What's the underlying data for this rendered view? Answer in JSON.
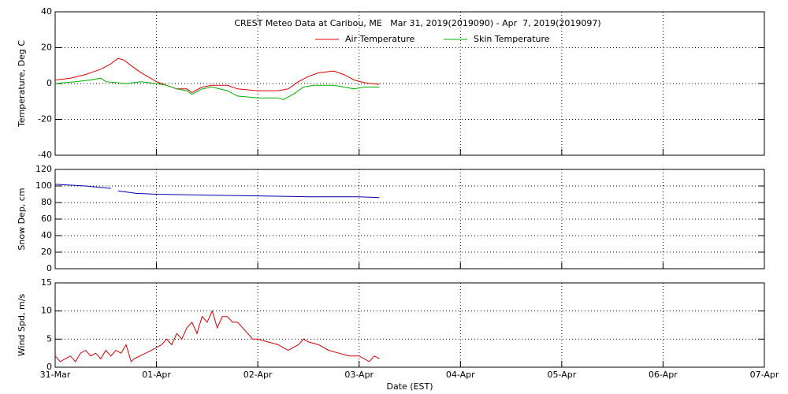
{
  "chart_data": [
    {
      "type": "line",
      "title": "CREST Meteo Data at Caribou, ME   Mar 31, 2019(2019090) - Apr  7, 2019(2019097)",
      "ylabel": "Temperature, Deg C",
      "xlim": [
        90,
        97
      ],
      "xticks": [
        90,
        91,
        92,
        93,
        94,
        95,
        96,
        97
      ],
      "ylim": [
        -40,
        40
      ],
      "yticks": [
        -40,
        -20,
        0,
        20,
        40
      ],
      "grid": true,
      "series": [
        {
          "name": "Air Temperature",
          "color": "#e00000",
          "x": [
            90.0,
            90.15,
            90.3,
            90.45,
            90.55,
            90.62,
            90.68,
            90.75,
            90.85,
            91.0,
            91.1,
            91.2,
            91.3,
            91.35,
            91.45,
            91.55,
            91.7,
            91.8,
            92.0,
            92.2,
            92.3,
            92.4,
            92.5,
            92.6,
            92.75,
            92.85,
            92.95,
            93.05,
            93.2
          ],
          "values": [
            2,
            3,
            5,
            8,
            11,
            14,
            13,
            10,
            6,
            1,
            -1,
            -3,
            -3,
            -5,
            -2,
            -1,
            -1,
            -3,
            -4,
            -4,
            -3,
            1,
            4,
            6,
            7,
            5,
            2,
            0.5,
            -0.5
          ]
        },
        {
          "name": "Skin Temperature",
          "color": "#00b000",
          "x": [
            90.0,
            90.2,
            90.35,
            90.45,
            90.5,
            90.7,
            90.85,
            91.0,
            91.1,
            91.2,
            91.3,
            91.35,
            91.45,
            91.55,
            91.7,
            91.8,
            92.0,
            92.2,
            92.25,
            92.35,
            92.45,
            92.55,
            92.75,
            92.85,
            92.95,
            93.05,
            93.2
          ],
          "values": [
            0,
            1,
            2,
            3,
            1,
            0,
            1,
            0,
            -1,
            -3,
            -4,
            -6,
            -3,
            -2,
            -4,
            -7,
            -8,
            -8,
            -9,
            -6,
            -2,
            -1,
            -1,
            -2,
            -3,
            -2,
            -2
          ]
        }
      ]
    },
    {
      "type": "line",
      "ylabel": "Snow Dep, cm",
      "xlim": [
        90,
        97
      ],
      "xticks": [
        90,
        91,
        92,
        93,
        94,
        95,
        96,
        97
      ],
      "ylim": [
        0,
        120
      ],
      "yticks": [
        0,
        20,
        40,
        60,
        80,
        100,
        120
      ],
      "grid": true,
      "series": [
        {
          "name": "Snow Depth",
          "color": "#0000b0",
          "x": [
            90.0,
            90.3,
            90.55,
            90.58,
            90.62,
            90.8,
            91.0,
            91.5,
            92.0,
            92.5,
            93.0,
            93.2
          ],
          "values": [
            102,
            100,
            97,
            null,
            94,
            91,
            90,
            89,
            88,
            87,
            87,
            86
          ]
        }
      ]
    },
    {
      "type": "line",
      "ylabel": "Wind Spd, m/s",
      "xlabel": "Date (EST)",
      "xlim": [
        90,
        97
      ],
      "xticks": [
        {
          "value": 90,
          "label": "31-Mar"
        },
        {
          "value": 91,
          "label": "01-Apr"
        },
        {
          "value": 92,
          "label": "02-Apr"
        },
        {
          "value": 93,
          "label": "03-Apr"
        },
        {
          "value": 94,
          "label": "04-Apr"
        },
        {
          "value": 95,
          "label": "05-Apr"
        },
        {
          "value": 96,
          "label": "06-Apr"
        },
        {
          "value": 97,
          "label": "07-Apr"
        }
      ],
      "ylim": [
        0,
        15
      ],
      "yticks": [
        0,
        5,
        10,
        15
      ],
      "grid": true,
      "series": [
        {
          "name": "Wind Speed",
          "color": "#d00000",
          "x": [
            90.0,
            90.05,
            90.1,
            90.15,
            90.2,
            90.25,
            90.3,
            90.35,
            90.4,
            90.45,
            90.5,
            90.55,
            90.6,
            90.65,
            90.7,
            90.75,
            90.78,
            90.95,
            91.0,
            91.05,
            91.1,
            91.15,
            91.2,
            91.25,
            91.3,
            91.35,
            91.4,
            91.45,
            91.5,
            91.55,
            91.6,
            91.65,
            91.7,
            91.75,
            91.8,
            91.85,
            91.9,
            91.95,
            92.0,
            92.1,
            92.2,
            92.3,
            92.4,
            92.45,
            92.5,
            92.6,
            92.7,
            92.8,
            92.9,
            93.0,
            93.05,
            93.1,
            93.15,
            93.2
          ],
          "values": [
            2,
            1,
            1.5,
            2,
            1,
            2.5,
            3,
            2,
            2.5,
            1.5,
            3,
            2,
            3,
            2.5,
            4,
            1,
            1.5,
            3,
            3.5,
            4,
            5,
            4,
            6,
            5,
            7,
            8,
            6,
            9,
            8,
            10,
            7,
            9,
            9,
            8,
            8,
            7,
            6,
            5,
            5,
            4.5,
            4,
            3,
            4,
            5,
            4.5,
            4,
            3,
            2.5,
            2,
            2,
            1.5,
            1,
            2,
            1.5
          ]
        }
      ]
    }
  ]
}
